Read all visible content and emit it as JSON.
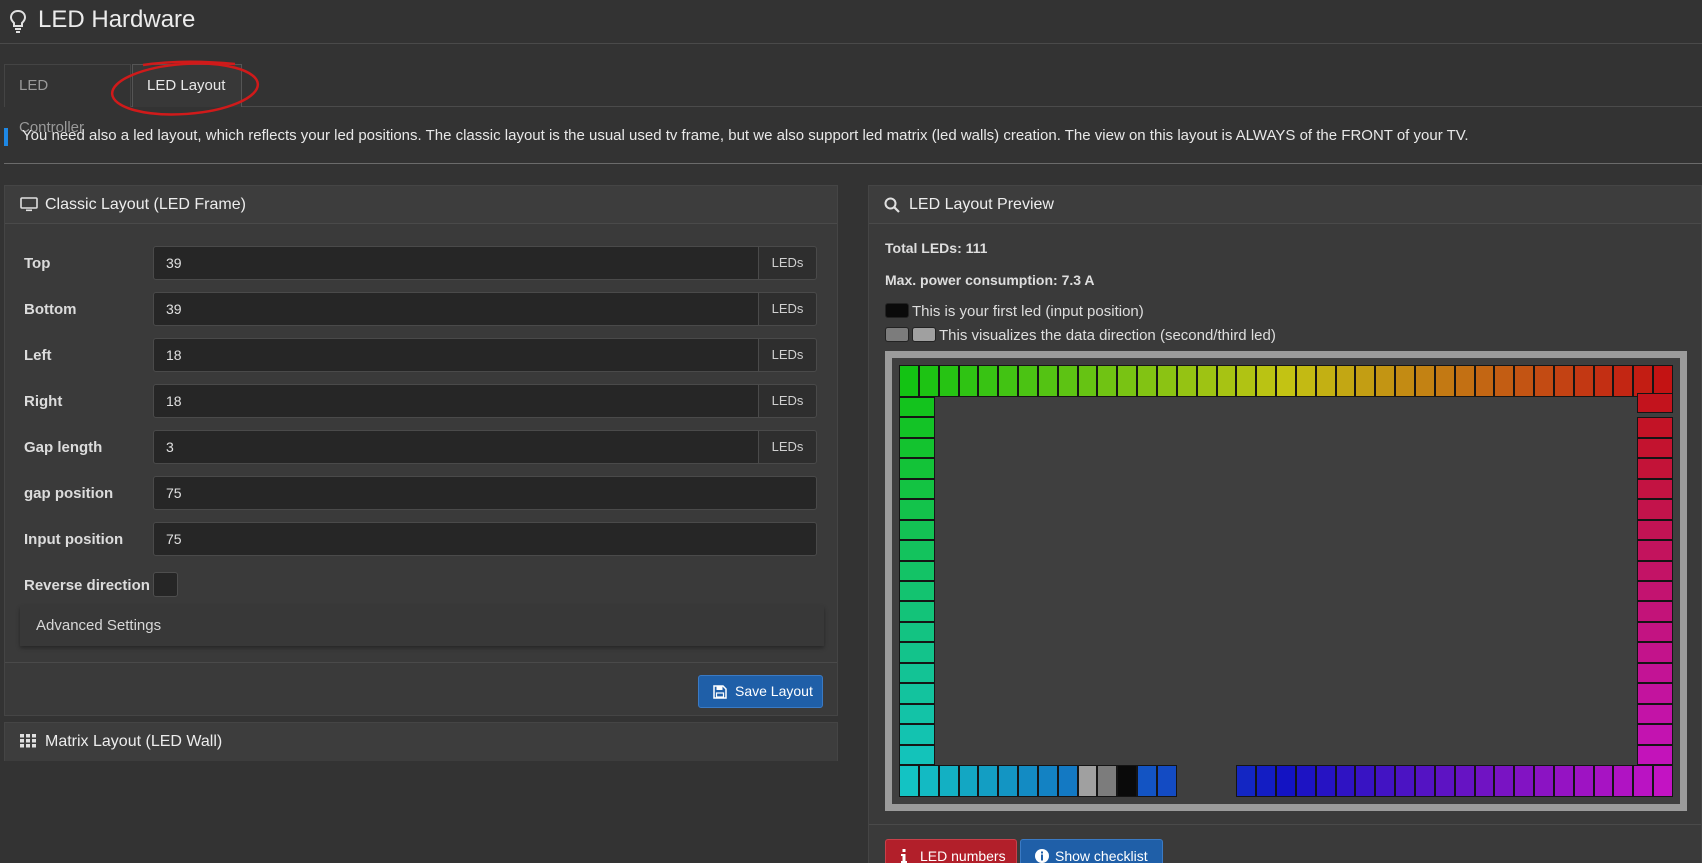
{
  "page": {
    "title": "LED Hardware"
  },
  "tabs": [
    {
      "label": "LED Controller",
      "active": false
    },
    {
      "label": "LED Layout",
      "active": true
    }
  ],
  "info_text": "You need also a led layout, which reflects your led positions. The classic layout is the usual used tv frame, but we also support led matrix (led walls) creation. The view on this layout is ALWAYS of the FRONT of your TV.",
  "classic": {
    "title": "Classic Layout (LED Frame)",
    "fields": [
      {
        "label": "Top",
        "value": "39",
        "unit": "LEDs"
      },
      {
        "label": "Bottom",
        "value": "39",
        "unit": "LEDs"
      },
      {
        "label": "Left",
        "value": "18",
        "unit": "LEDs"
      },
      {
        "label": "Right",
        "value": "18",
        "unit": "LEDs"
      },
      {
        "label": "Gap length",
        "value": "3",
        "unit": "LEDs"
      },
      {
        "label": "gap position",
        "value": "75"
      },
      {
        "label": "Input position",
        "value": "75"
      }
    ],
    "reverse_label": "Reverse direction",
    "reverse_checked": false,
    "advanced_label": "Advanced Settings",
    "save_label": "Save Layout"
  },
  "matrix": {
    "title": "Matrix Layout (LED Wall)"
  },
  "preview": {
    "title": "LED Layout Preview",
    "total_leds": "Total LEDs: 111",
    "max_power": "Max. power consumption: 7.3 A",
    "legend_first": "This is your first led (input position)",
    "legend_direction": "This visualizes the data direction (second/third led)",
    "led_numbers_label": "LED numbers",
    "checklist_label": "Show checklist"
  },
  "colors": {
    "accent": "#1e88e5",
    "primary_button": "#1f5fa8",
    "danger_button": "#b21f2a",
    "first_led": "#0a0a0a",
    "second_led": "#7c7c7c",
    "third_led": "#a0a0a0"
  },
  "icons": {
    "header": "lightbulb-icon",
    "classic": "monitor-icon",
    "matrix": "grid-icon",
    "preview": "search-icon",
    "save": "floppy-disk-icon",
    "led_numbers": "info-icon",
    "checklist": "info-circle-icon"
  }
}
